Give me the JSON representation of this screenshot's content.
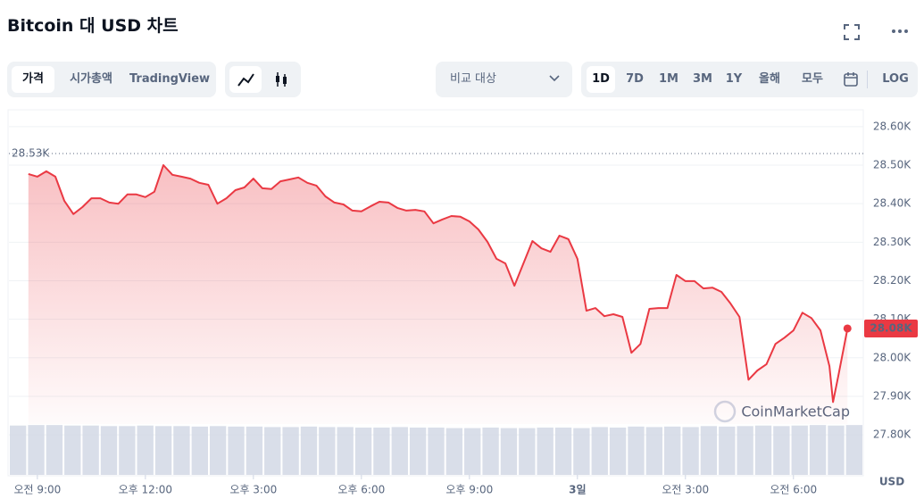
{
  "header": {
    "title": "Bitcoin 대 USD 차트"
  },
  "toolbar": {
    "tabs": [
      "가격",
      "시가총액",
      "TradingView"
    ],
    "compare": "비교 대상",
    "ranges": [
      "1D",
      "7D",
      "1M",
      "3M",
      "1Y",
      "올해",
      "모두"
    ],
    "log": "LOG"
  },
  "chart_data": {
    "type": "line",
    "color": "#ea3943",
    "x": [
      -0.25,
      0,
      0.25,
      0.5,
      0.75,
      1,
      1.25,
      1.5,
      1.75,
      2,
      2.25,
      2.5,
      2.75,
      3,
      3.25,
      3.5,
      3.75,
      4,
      4.25,
      4.5,
      4.75,
      5,
      5.25,
      5.5,
      5.75,
      6,
      6.25,
      6.5,
      6.75,
      7,
      7.25,
      7.5,
      7.75,
      8,
      8.25,
      8.5,
      8.75,
      9,
      9.25,
      9.5,
      9.75,
      10,
      10.25,
      10.5,
      10.75,
      11,
      11.25,
      11.5,
      11.75,
      12,
      12.25,
      12.5,
      12.75,
      13,
      13.25,
      13.5,
      13.75,
      14,
      14.25,
      14.5,
      14.75,
      15,
      15.25,
      15.5,
      15.75,
      16,
      16.25,
      16.5,
      16.75,
      17,
      17.25,
      17.5,
      17.75,
      18,
      18.25,
      18.5,
      18.75,
      19,
      19.25,
      19.5,
      19.75,
      20,
      20.25,
      20.5,
      20.75,
      21,
      21.25,
      21.5,
      21.75,
      22,
      22.1,
      22.25,
      22.5
    ],
    "values": [
      28477,
      28470,
      28484,
      28470,
      28407,
      28373,
      28391,
      28414,
      28414,
      28403,
      28400,
      28424,
      28424,
      28417,
      28431,
      28500,
      28475,
      28470,
      28465,
      28454,
      28449,
      28400,
      28414,
      28435,
      28442,
      28465,
      28440,
      28438,
      28458,
      28463,
      28468,
      28454,
      28447,
      28419,
      28403,
      28398,
      28382,
      28380,
      28393,
      28405,
      28403,
      28389,
      28382,
      28384,
      28380,
      28349,
      28359,
      28368,
      28366,
      28354,
      28333,
      28301,
      28257,
      28245,
      28187,
      28245,
      28303,
      28284,
      28275,
      28317,
      28308,
      28257,
      28122,
      28129,
      28108,
      28113,
      28106,
      28013,
      28036,
      28127,
      28129,
      28129,
      28215,
      28199,
      28199,
      28180,
      28182,
      28171,
      28141,
      28106,
      27943,
      27967,
      27983,
      28036,
      28052,
      28071,
      28117,
      28103,
      28071,
      27978,
      27885,
      27955,
      28076
    ],
    "current_label": "28.08K",
    "max_marker": {
      "value": 28530,
      "label": "28.53K"
    },
    "xlim": [
      -0.79,
      22.94
    ],
    "xticks": [
      {
        "value": 0,
        "label": "오전 9:00"
      },
      {
        "value": 3,
        "label": "오후 12:00"
      },
      {
        "value": 6,
        "label": "오후 3:00"
      },
      {
        "value": 9,
        "label": "오후 6:00"
      },
      {
        "value": 12,
        "label": "오후 9:00"
      },
      {
        "value": 15,
        "label": "3일"
      },
      {
        "value": 18,
        "label": "오전 3:00"
      },
      {
        "value": 21,
        "label": "오전 6:00"
      }
    ],
    "ylim": [
      27696,
      28639
    ],
    "yticks": [
      {
        "value": 27800,
        "label": "27.80K"
      },
      {
        "value": 27900,
        "label": "27.90K"
      },
      {
        "value": 28000,
        "label": "28.00K"
      },
      {
        "value": 28100,
        "label": "28.10K"
      },
      {
        "value": 28200,
        "label": "28.20K"
      },
      {
        "value": 28300,
        "label": "28.30K"
      },
      {
        "value": 28400,
        "label": "28.40K"
      },
      {
        "value": 28500,
        "label": "28.50K"
      },
      {
        "value": 28600,
        "label": "28.60K"
      }
    ],
    "ylabel": "USD",
    "grid": true,
    "watermark": "CoinMarketCap",
    "volume": {
      "ylim": [
        0,
        100
      ],
      "values": [
        97,
        98,
        98,
        97,
        97,
        96,
        96,
        97,
        96,
        96,
        95,
        96,
        95,
        95,
        94,
        94,
        95,
        94,
        94,
        93,
        93,
        94,
        93,
        93,
        92,
        92,
        93,
        92,
        92,
        93,
        93,
        92,
        94,
        93,
        95,
        94,
        95,
        94,
        96,
        95,
        96,
        97,
        96,
        97,
        98,
        97,
        98
      ]
    }
  }
}
